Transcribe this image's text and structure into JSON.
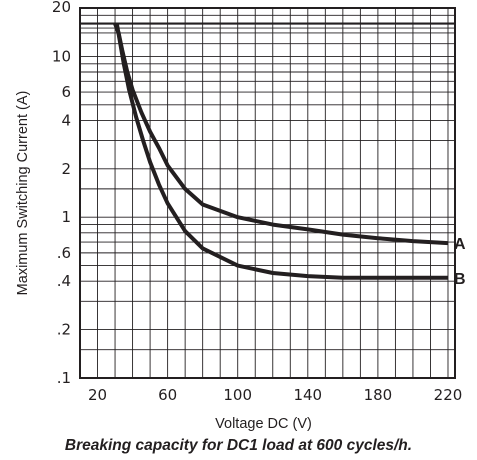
{
  "chart_data": {
    "type": "line",
    "title": "",
    "caption": "Breaking capacity for DC1 load at 600 cycles/h.",
    "xlabel": "Voltage DC (V)",
    "ylabel": "Maximum Switching Current (A)",
    "xlim": [
      10,
      224
    ],
    "ylim": [
      0.1,
      20
    ],
    "yscale": "log",
    "grid": true,
    "x_ticks": [
      20,
      60,
      100,
      140,
      180,
      220
    ],
    "x_tick_labels": [
      "20",
      "60",
      "100",
      "140",
      "180",
      "220"
    ],
    "y_ticks": [
      20,
      10,
      6,
      4,
      2,
      1,
      0.6,
      0.4,
      0.2,
      0.1
    ],
    "y_tick_labels": [
      "20",
      "10",
      "6",
      "4",
      "2",
      "1",
      ".6",
      ".4",
      ".2",
      ".1"
    ],
    "reference_line_y": 16,
    "series": [
      {
        "name": "A",
        "color": "#231f20",
        "points": [
          [
            30,
            16
          ],
          [
            32,
            14
          ],
          [
            34,
            11
          ],
          [
            37,
            8
          ],
          [
            40,
            6.2
          ],
          [
            45,
            4.5
          ],
          [
            50,
            3.4
          ],
          [
            55,
            2.7
          ],
          [
            60,
            2.1
          ],
          [
            70,
            1.5
          ],
          [
            80,
            1.2
          ],
          [
            100,
            1.0
          ],
          [
            120,
            0.9
          ],
          [
            140,
            0.84
          ],
          [
            160,
            0.78
          ],
          [
            180,
            0.74
          ],
          [
            200,
            0.71
          ],
          [
            220,
            0.69
          ]
        ]
      },
      {
        "name": "B",
        "color": "#231f20",
        "points": [
          [
            31,
            16
          ],
          [
            33,
            12
          ],
          [
            35,
            9
          ],
          [
            38,
            6.2
          ],
          [
            42,
            4.2
          ],
          [
            46,
            3.0
          ],
          [
            50,
            2.2
          ],
          [
            55,
            1.6
          ],
          [
            60,
            1.22
          ],
          [
            70,
            0.82
          ],
          [
            80,
            0.64
          ],
          [
            100,
            0.5
          ],
          [
            120,
            0.45
          ],
          [
            140,
            0.43
          ],
          [
            160,
            0.42
          ],
          [
            180,
            0.42
          ],
          [
            200,
            0.42
          ],
          [
            220,
            0.42
          ]
        ]
      }
    ]
  }
}
